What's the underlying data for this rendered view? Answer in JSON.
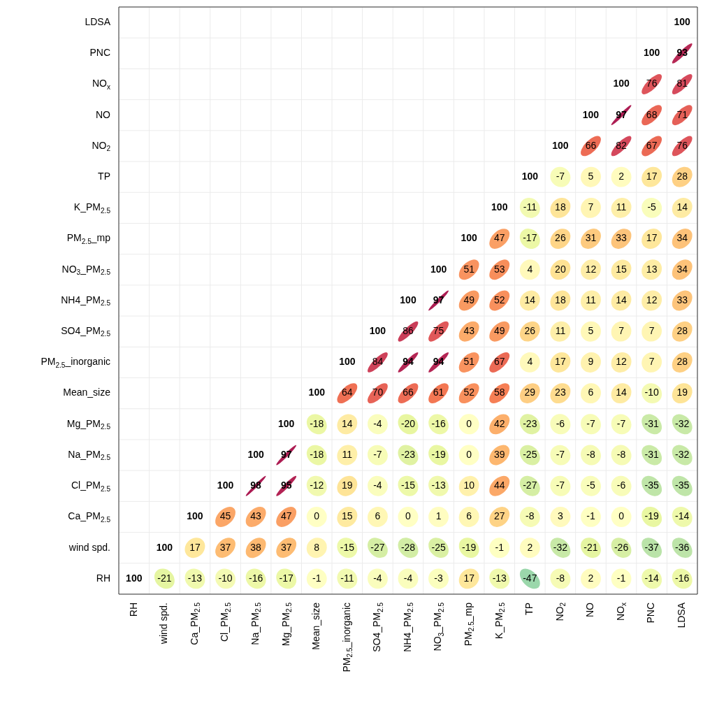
{
  "chart_data": {
    "type": "heatmap",
    "grid": true,
    "data_labels": true,
    "categories": [
      "RH",
      "wind spd.",
      "Ca_PM$_{2.5}$",
      "Cl_PM$_{2.5}$",
      "Na_PM$_{2.5}$",
      "Mg_PM$_{2.5}$",
      "Mean_size",
      "PM$_{2.5}$_inorganic",
      "SO4_PM$_{2.5}$",
      "NH4_PM$_{2.5}$",
      "NO$_{3}$_PM$_{2.5}$",
      "PM$_{2.5}$_mp",
      "K_PM$_{2.5}$",
      "TP",
      "NO$_{2}$",
      "NO",
      "NO$_{x}$",
      "PNC",
      "LDSA"
    ],
    "y_categories": [
      "LDSA",
      "PNC",
      "NO$_{x}$",
      "NO",
      "NO$_{2}$",
      "TP",
      "K_PM$_{2.5}$",
      "PM$_{2.5}$_mp",
      "NO$_{3}$_PM$_{2.5}$",
      "NH4_PM$_{2.5}$",
      "SO4_PM$_{2.5}$",
      "PM$_{2.5}$_inorganic",
      "Mean_size",
      "Mg_PM$_{2.5}$",
      "Na_PM$_{2.5}$",
      "Cl_PM$_{2.5}$",
      "Ca_PM$_{2.5}$",
      "wind spd.",
      "RH"
    ],
    "cells": [
      [
        null,
        null,
        null,
        null,
        null,
        null,
        null,
        null,
        null,
        null,
        null,
        null,
        null,
        null,
        null,
        null,
        null,
        null,
        100
      ],
      [
        null,
        null,
        null,
        null,
        null,
        null,
        null,
        null,
        null,
        null,
        null,
        null,
        null,
        null,
        null,
        null,
        null,
        100,
        93
      ],
      [
        null,
        null,
        null,
        null,
        null,
        null,
        null,
        null,
        null,
        null,
        null,
        null,
        null,
        null,
        null,
        null,
        100,
        76,
        81
      ],
      [
        null,
        null,
        null,
        null,
        null,
        null,
        null,
        null,
        null,
        null,
        null,
        null,
        null,
        null,
        null,
        100,
        97,
        68,
        71
      ],
      [
        null,
        null,
        null,
        null,
        null,
        null,
        null,
        null,
        null,
        null,
        null,
        null,
        null,
        null,
        100,
        66,
        82,
        67,
        76
      ],
      [
        null,
        null,
        null,
        null,
        null,
        null,
        null,
        null,
        null,
        null,
        null,
        null,
        null,
        100,
        -7,
        5,
        2,
        17,
        28
      ],
      [
        null,
        null,
        null,
        null,
        null,
        null,
        null,
        null,
        null,
        null,
        null,
        null,
        100,
        -11,
        18,
        7,
        11,
        -5,
        14
      ],
      [
        null,
        null,
        null,
        null,
        null,
        null,
        null,
        null,
        null,
        null,
        null,
        100,
        47,
        -17,
        26,
        31,
        33,
        17,
        34
      ],
      [
        null,
        null,
        null,
        null,
        null,
        null,
        null,
        null,
        null,
        null,
        100,
        51,
        53,
        4,
        20,
        12,
        15,
        13,
        34
      ],
      [
        null,
        null,
        null,
        null,
        null,
        null,
        null,
        null,
        null,
        100,
        97,
        49,
        52,
        14,
        18,
        11,
        14,
        12,
        33
      ],
      [
        null,
        null,
        null,
        null,
        null,
        null,
        null,
        null,
        100,
        86,
        75,
        43,
        49,
        26,
        11,
        5,
        7,
        7,
        28
      ],
      [
        null,
        null,
        null,
        null,
        null,
        null,
        null,
        100,
        84,
        94,
        94,
        51,
        67,
        4,
        17,
        9,
        12,
        7,
        28
      ],
      [
        null,
        null,
        null,
        null,
        null,
        null,
        100,
        64,
        70,
        66,
        61,
        52,
        58,
        29,
        23,
        6,
        14,
        -10,
        19
      ],
      [
        null,
        null,
        null,
        null,
        null,
        100,
        -18,
        14,
        -4,
        -20,
        -16,
        0,
        42,
        -23,
        -6,
        -7,
        -7,
        -31,
        -32
      ],
      [
        null,
        null,
        null,
        null,
        100,
        97,
        -18,
        11,
        -7,
        -23,
        -19,
        0,
        39,
        -25,
        -7,
        -8,
        -8,
        -31,
        -32
      ],
      [
        null,
        null,
        null,
        100,
        98,
        95,
        -12,
        19,
        -4,
        -15,
        -13,
        10,
        44,
        -27,
        -7,
        -5,
        -6,
        -35,
        -35
      ],
      [
        null,
        null,
        100,
        45,
        43,
        47,
        0,
        15,
        6,
        0,
        1,
        6,
        27,
        -8,
        3,
        -1,
        0,
        -19,
        -14
      ],
      [
        null,
        100,
        17,
        37,
        38,
        37,
        8,
        -15,
        -27,
        -28,
        -25,
        -19,
        -1,
        2,
        -32,
        -21,
        -26,
        -37,
        -36
      ],
      [
        100,
        -21,
        -13,
        -10,
        -16,
        -17,
        -1,
        -11,
        -4,
        -4,
        -3,
        17,
        -13,
        -47,
        -8,
        2,
        -1,
        -14,
        -16
      ]
    ]
  }
}
